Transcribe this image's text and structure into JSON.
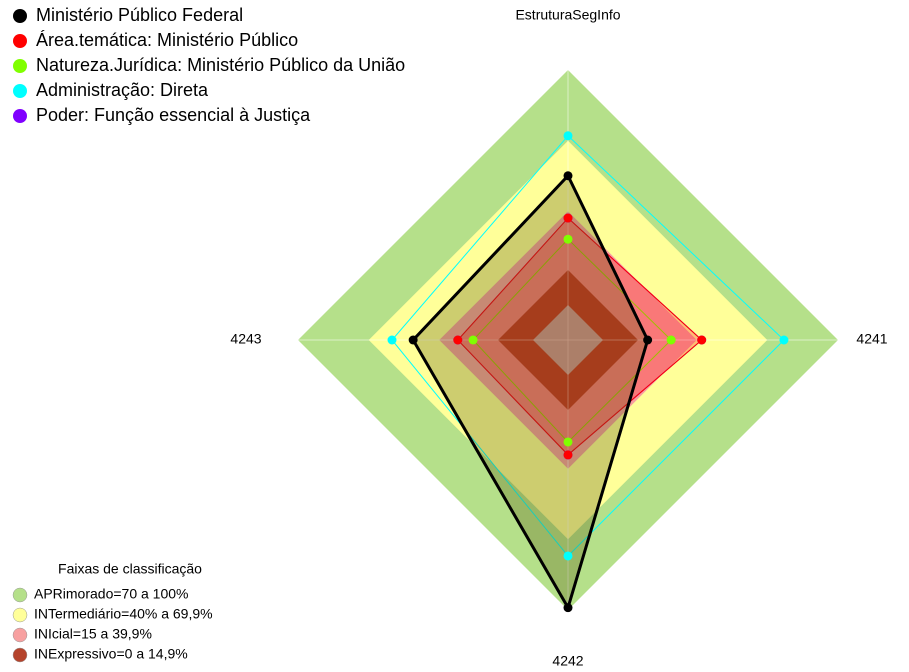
{
  "chart_data": {
    "type": "radar",
    "categories": [
      "EstruturaSegInfo",
      "4241",
      "4242",
      "4243"
    ],
    "ylim": [
      0,
      100
    ],
    "series": [
      {
        "name": "Ministério Público Federal",
        "color": "#000000",
        "values": [
          55,
          19,
          99,
          51
        ]
      },
      {
        "name": "Área.temática: Ministério Público",
        "color": "#ff0000",
        "values": [
          37,
          42,
          34,
          32
        ]
      },
      {
        "name": "Natureza.Jurídica: Ministério Público da União",
        "color": "#80ff00",
        "values": [
          28,
          29,
          28.5,
          25.5
        ]
      },
      {
        "name": "Administração: Direta",
        "color": "#00ffff",
        "values": [
          72,
          77,
          77,
          60
        ]
      },
      {
        "name": "Poder: Função essencial à Justiça",
        "color": "#8000ff",
        "values": [
          37,
          42,
          34,
          32
        ]
      }
    ],
    "bands_title": "Faixas de classificação",
    "bands": [
      {
        "name": "APRimorado=70 a 100%",
        "color": "#b5e08a",
        "from": 70,
        "to": 100
      },
      {
        "name": "INTermediário=40% a 69,9%",
        "color": "#ffff99",
        "from": 40,
        "to": 69.9
      },
      {
        "name": "INIcial=15 a 39,9%",
        "color": "#f7a0a0",
        "from": 15,
        "to": 39.9
      },
      {
        "name": "INExpressivo=0 a 14,9%",
        "color": "#b5432c",
        "from": 0,
        "to": 14.9
      }
    ]
  }
}
